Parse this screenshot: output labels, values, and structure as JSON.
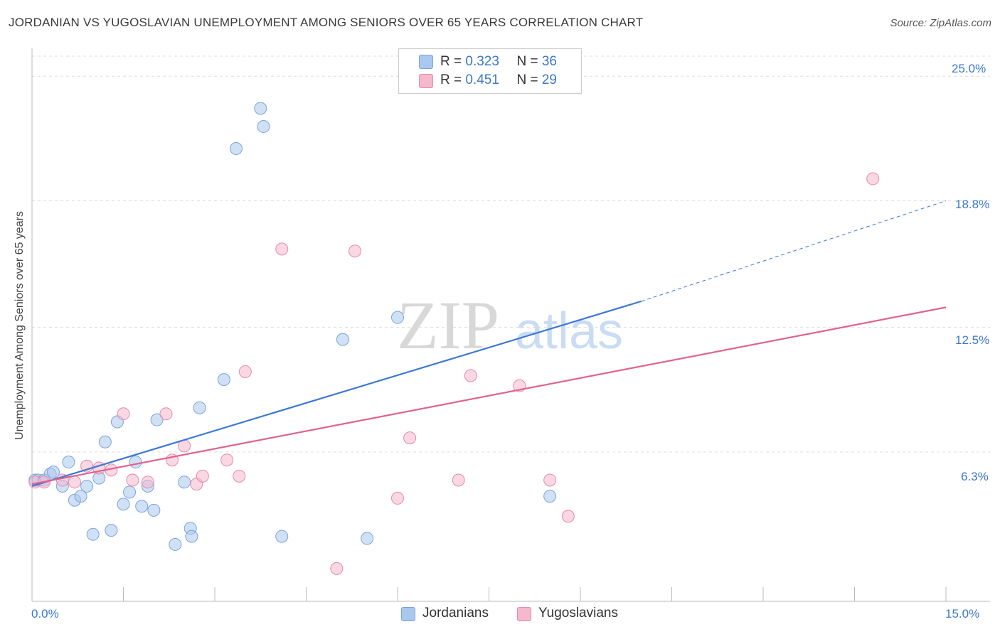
{
  "chart_data": {
    "type": "scatter",
    "title": "JORDANIAN VS YUGOSLAVIAN UNEMPLOYMENT AMONG SENIORS OVER 65 YEARS CORRELATION CHART",
    "source": "Source: ZipAtlas.com",
    "ylabel": "Unemployment Among Seniors over 65 years",
    "xlim": [
      0,
      15
    ],
    "ylim": [
      0,
      26
    ],
    "x_tick_labels": [
      "0.0%",
      "15.0%"
    ],
    "y_ticks": [
      6.3,
      12.5,
      18.8,
      25.0
    ],
    "y_tick_labels": [
      "6.3%",
      "12.5%",
      "18.8%",
      "25.0%"
    ],
    "grid": true,
    "watermark": {
      "zip": "ZIP",
      "atlas": "atlas"
    },
    "legend": {
      "position": "top-center",
      "rows": [
        {
          "r_label": "R = ",
          "r_value": "0.323",
          "n_label": "N = ",
          "n_value": "36"
        },
        {
          "r_label": "R = ",
          "r_value": "0.451",
          "n_label": "N = ",
          "n_value": "29"
        }
      ]
    },
    "series": [
      {
        "name": "Jordanians",
        "color": "#a9c8ef",
        "stroke": "#7aa3d9",
        "line_color": "#3a78d4",
        "trend": {
          "x0": 0.0,
          "y0": 4.6,
          "x1": 10.0,
          "y1": 13.8,
          "dash_to_x": 15.0,
          "dash_to_y": 18.8
        },
        "points": [
          [
            0.05,
            4.9
          ],
          [
            0.1,
            4.9
          ],
          [
            0.2,
            4.9
          ],
          [
            0.3,
            5.2
          ],
          [
            0.35,
            5.3
          ],
          [
            0.5,
            4.6
          ],
          [
            0.6,
            5.8
          ],
          [
            0.7,
            3.9
          ],
          [
            0.8,
            4.1
          ],
          [
            0.9,
            4.6
          ],
          [
            1.0,
            2.2
          ],
          [
            1.1,
            5.0
          ],
          [
            1.2,
            6.8
          ],
          [
            1.3,
            2.4
          ],
          [
            1.4,
            7.8
          ],
          [
            1.5,
            3.7
          ],
          [
            1.6,
            4.3
          ],
          [
            1.7,
            5.8
          ],
          [
            1.8,
            3.6
          ],
          [
            1.9,
            4.6
          ],
          [
            2.0,
            3.4
          ],
          [
            2.05,
            7.9
          ],
          [
            2.35,
            1.7
          ],
          [
            2.5,
            4.8
          ],
          [
            2.6,
            2.5
          ],
          [
            2.62,
            2.1
          ],
          [
            2.75,
            8.5
          ],
          [
            3.15,
            9.9
          ],
          [
            3.35,
            21.4
          ],
          [
            3.75,
            23.4
          ],
          [
            3.8,
            22.5
          ],
          [
            4.1,
            2.1
          ],
          [
            5.1,
            11.9
          ],
          [
            5.5,
            2.0
          ],
          [
            6.0,
            13.0
          ],
          [
            8.5,
            4.1
          ]
        ]
      },
      {
        "name": "Yugoslavians",
        "color": "#f5b8cc",
        "stroke": "#e68aa8",
        "line_color": "#e0628f",
        "trend": {
          "x0": 0.0,
          "y0": 4.7,
          "x1": 15.0,
          "y1": 13.5
        },
        "points": [
          [
            0.05,
            4.8
          ],
          [
            0.2,
            4.8
          ],
          [
            0.5,
            4.9
          ],
          [
            0.7,
            4.8
          ],
          [
            0.9,
            5.6
          ],
          [
            1.1,
            5.5
          ],
          [
            1.3,
            5.4
          ],
          [
            1.5,
            8.2
          ],
          [
            1.65,
            4.9
          ],
          [
            1.9,
            4.8
          ],
          [
            2.2,
            8.2
          ],
          [
            2.3,
            5.9
          ],
          [
            2.5,
            6.6
          ],
          [
            2.7,
            4.7
          ],
          [
            2.8,
            5.1
          ],
          [
            3.2,
            5.9
          ],
          [
            3.4,
            5.1
          ],
          [
            3.5,
            10.3
          ],
          [
            4.1,
            16.4
          ],
          [
            5.0,
            0.5
          ],
          [
            5.3,
            16.3
          ],
          [
            6.0,
            4.0
          ],
          [
            6.2,
            7.0
          ],
          [
            7.0,
            4.9
          ],
          [
            7.2,
            10.1
          ],
          [
            8.0,
            9.6
          ],
          [
            8.5,
            4.9
          ],
          [
            8.8,
            3.1
          ],
          [
            13.8,
            19.9
          ]
        ]
      }
    ]
  }
}
